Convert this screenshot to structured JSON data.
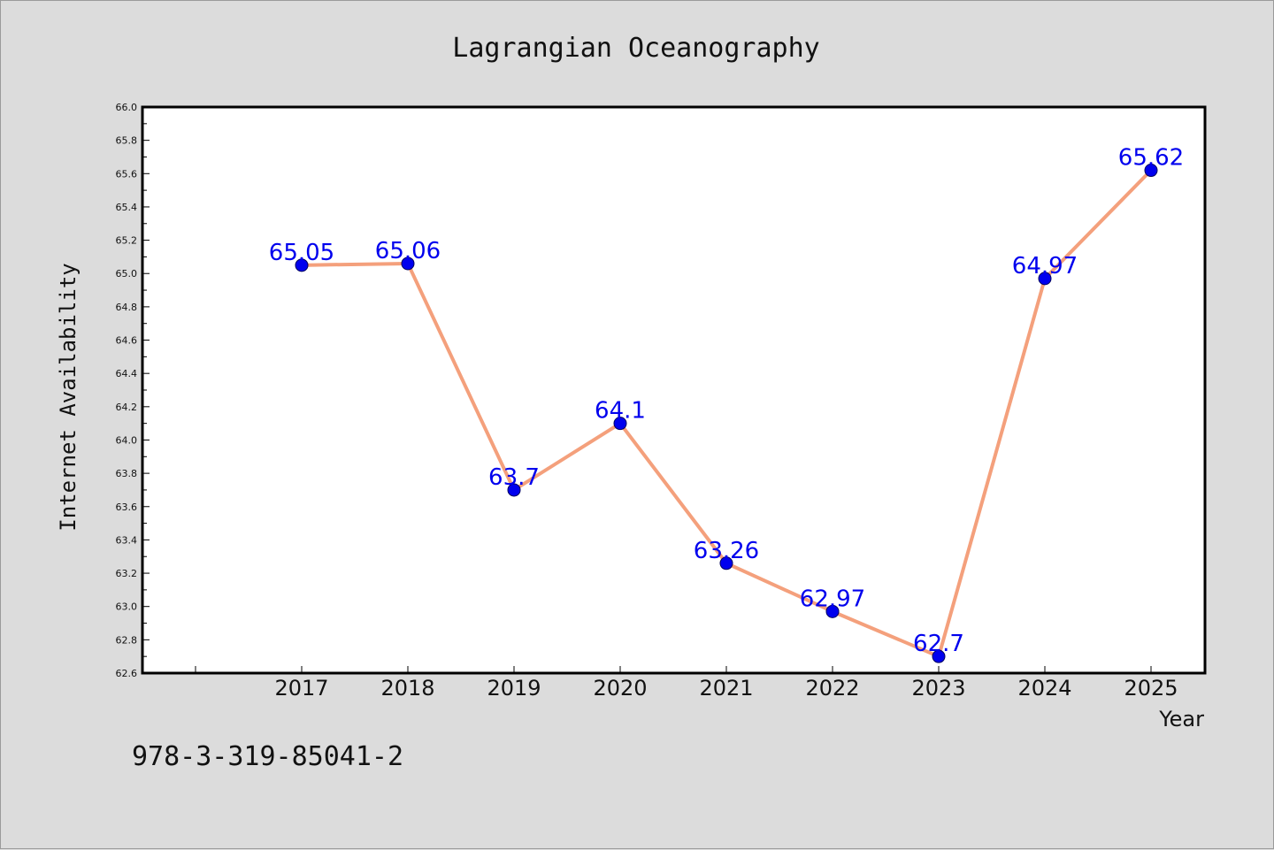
{
  "footer": {
    "isbn": "978-3-319-85041-2"
  },
  "chart_data": {
    "type": "line",
    "title": "Lagrangian Oceanography",
    "xlabel": "Year",
    "ylabel": "Internet Availability",
    "categories": [
      "2017",
      "2018",
      "2019",
      "2020",
      "2021",
      "2022",
      "2023",
      "2024",
      "2025"
    ],
    "values": [
      65.05,
      65.06,
      63.7,
      64.1,
      63.26,
      62.97,
      62.7,
      64.97,
      65.62
    ],
    "data_labels": [
      "65.05",
      "65.06",
      "63.7",
      "64.1",
      "63.26",
      "62.97",
      "62.7",
      "64.97",
      "65.62"
    ],
    "ylim": [
      62.6,
      66.0
    ],
    "yticks": [
      "62.6",
      "62.8",
      "63.0",
      "63.2",
      "63.4",
      "63.6",
      "63.8",
      "64.0",
      "64.2",
      "64.4",
      "64.6",
      "64.8",
      "65.0",
      "65.2",
      "65.4",
      "65.6",
      "65.8",
      "66.0"
    ],
    "grid": false,
    "legend": "none",
    "colors": {
      "line": "#f4a07c",
      "marker": "#0000ee",
      "label": "#0000ee",
      "plot_bg": "#ffffff",
      "page_bg": "#dcdcdc"
    }
  }
}
